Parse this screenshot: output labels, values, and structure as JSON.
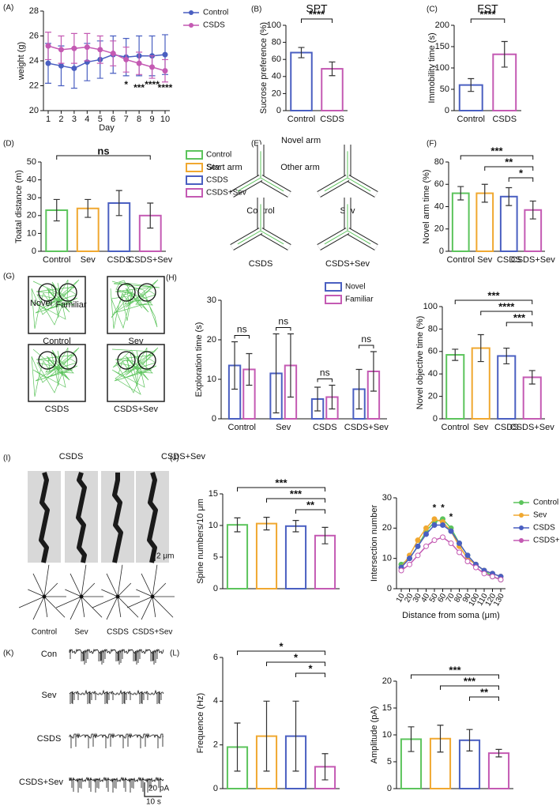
{
  "panel_labels": [
    "(A)",
    "(B)",
    "(C)",
    "(D)",
    "(E)",
    "(F)",
    "(G)",
    "(H)",
    "(I)",
    "(J)",
    "(K)",
    "(L)"
  ],
  "ymaze": {
    "arms": [
      "Novel arm",
      "Start arm",
      "Other arm"
    ],
    "groups": [
      "Control",
      "Sev",
      "CSDS",
      "CSDS+Sev"
    ]
  },
  "openfield": {
    "objects": [
      "Novel",
      "Familiar"
    ],
    "groups": [
      "Control",
      "Sev",
      "CSDS",
      "CSDS+Sev"
    ]
  },
  "dendrites": {
    "headers": [
      "CSDS",
      "CSDS+Sev"
    ],
    "scale": "2 μm",
    "groups": [
      "Control",
      "Sev",
      "CSDS",
      "CSDS+Sev"
    ]
  },
  "traces": {
    "groups": [
      "Con",
      "Sev",
      "CSDS",
      "CSDS+Sev"
    ],
    "scale_y": "20 pA",
    "scale_x": "10 s"
  },
  "chart_data": [
    {
      "type": "line",
      "xlabel": "Day",
      "ylabel": "weight (g)",
      "x": [
        1,
        2,
        3,
        4,
        5,
        6,
        7,
        8,
        9,
        10
      ],
      "xticks": [
        1,
        2,
        3,
        4,
        5,
        6,
        7,
        8,
        9,
        10
      ],
      "xlim": [
        1,
        10
      ],
      "ylim": [
        20,
        28
      ],
      "yticks": [
        20,
        22,
        24,
        26,
        28
      ],
      "legend": "right",
      "series": [
        {
          "name": "Control",
          "color": "#4a5fc1",
          "values": [
            23.8,
            23.6,
            23.4,
            23.9,
            24.1,
            24.5,
            24.3,
            24.4,
            24.4,
            24.5
          ],
          "errors": [
            1.6,
            1.6,
            1.6,
            1.5,
            1.5,
            1.5,
            1.5,
            1.6,
            1.6,
            1.6
          ]
        },
        {
          "name": "CSDS",
          "color": "#c45ab3",
          "values": [
            25.2,
            24.9,
            25.0,
            25.1,
            24.9,
            24.6,
            24.1,
            23.8,
            23.5,
            23.2
          ],
          "errors": [
            1.1,
            1.1,
            1.2,
            1.1,
            1.1,
            1.0,
            1.0,
            0.9,
            0.9,
            0.9
          ]
        }
      ],
      "point_labels": [
        null,
        null,
        null,
        null,
        null,
        null,
        "*",
        "***",
        "****",
        "****"
      ]
    },
    {
      "type": "bar",
      "title": "SPT",
      "ylabel": "Sucrose preference (%)",
      "categories": [
        "Control",
        "CSDS"
      ],
      "values": [
        68,
        49
      ],
      "errors": [
        6,
        8
      ],
      "colors": [
        "#4a5fc1",
        "#c45ab3"
      ],
      "ylim": [
        0,
        100
      ],
      "yticks": [
        0,
        20,
        40,
        60,
        80,
        100
      ],
      "significance": [
        "****"
      ]
    },
    {
      "type": "bar",
      "title": "FST",
      "ylabel": "Immobility time (s)",
      "categories": [
        "Control",
        "CSDS"
      ],
      "values": [
        60,
        132
      ],
      "errors": [
        15,
        30
      ],
      "colors": [
        "#4a5fc1",
        "#c45ab3"
      ],
      "ylim": [
        0,
        200
      ],
      "yticks": [
        0,
        50,
        100,
        150,
        200
      ],
      "significance": [
        "****"
      ]
    },
    {
      "type": "bar",
      "ylabel": "Toatal distance (m)",
      "categories": [
        "Control",
        "Sev",
        "CSDS",
        "CSDS+Sev"
      ],
      "values": [
        23,
        24,
        27,
        20
      ],
      "errors": [
        6,
        5,
        7,
        7
      ],
      "colors": [
        "#5cc45c",
        "#f0a830",
        "#4a5fc1",
        "#c45ab3"
      ],
      "ylim": [
        0,
        50
      ],
      "yticks": [
        0,
        10,
        20,
        30,
        40,
        50
      ],
      "significance": [
        "ns"
      ],
      "legend": "right"
    },
    {
      "type": "bar",
      "ylabel": "Novel arm time (%)",
      "categories": [
        "Control",
        "Sev",
        "CSDS",
        "CSDS+Sev"
      ],
      "values": [
        52,
        52,
        49,
        37
      ],
      "errors": [
        6,
        8,
        8,
        8
      ],
      "colors": [
        "#5cc45c",
        "#f0a830",
        "#4a5fc1",
        "#c45ab3"
      ],
      "ylim": [
        0,
        80
      ],
      "yticks": [
        0,
        20,
        40,
        60,
        80
      ],
      "significance": [
        "***",
        "**",
        "*"
      ]
    },
    {
      "type": "grouped",
      "ylabel": "Exploration time (s)",
      "categories": [
        "Control",
        "Sev",
        "CSDS",
        "CSDS+Sev"
      ],
      "ylim": [
        0,
        30
      ],
      "yticks": [
        0,
        10,
        20,
        30
      ],
      "legend": "upper right",
      "series": [
        {
          "name": "Novel",
          "color": "#4a5fc1",
          "values": [
            13.5,
            11.5,
            5,
            7.5
          ],
          "errors": [
            6,
            10,
            3,
            5
          ]
        },
        {
          "name": "Familiar",
          "color": "#c45ab3",
          "values": [
            12.5,
            13.5,
            5.5,
            12
          ],
          "errors": [
            4,
            8,
            3,
            5
          ]
        }
      ],
      "group_labels": [
        "ns",
        "ns",
        "ns",
        "ns"
      ]
    },
    {
      "type": "bar",
      "ylabel": "Novel objective time (%)",
      "categories": [
        "Control",
        "Sev",
        "CSDS",
        "CSDS+Sev"
      ],
      "values": [
        57,
        63,
        56,
        37
      ],
      "errors": [
        5,
        12,
        7,
        6
      ],
      "colors": [
        "#5cc45c",
        "#f0a830",
        "#4a5fc1",
        "#c45ab3"
      ],
      "ylim": [
        0,
        100
      ],
      "yticks": [
        0,
        20,
        40,
        60,
        80,
        100
      ],
      "significance": [
        "***",
        "****",
        "***"
      ]
    },
    {
      "type": "bar",
      "ylabel": "Spine numbers/10 μm",
      "categories": [
        null,
        null,
        null,
        null
      ],
      "values": [
        10.1,
        10.3,
        9.9,
        8.4
      ],
      "errors": [
        1.1,
        1.0,
        0.9,
        1.3
      ],
      "colors": [
        "#5cc45c",
        "#f0a830",
        "#4a5fc1",
        "#c45ab3"
      ],
      "ylim": [
        0,
        15
      ],
      "yticks": [
        0,
        5,
        10,
        15
      ],
      "significance": [
        "***",
        "***",
        "**"
      ]
    },
    {
      "type": "line",
      "xlabel": "Distance from soma (μm)",
      "ylabel": "Intersection number",
      "x": [
        10,
        20,
        30,
        40,
        50,
        60,
        70,
        80,
        90,
        100,
        110,
        120,
        130
      ],
      "xticks": [
        10,
        20,
        30,
        40,
        50,
        60,
        70,
        80,
        90,
        100,
        110,
        120,
        130
      ],
      "xlim": [
        10,
        130
      ],
      "ylim": [
        0,
        30
      ],
      "yticks": [
        0,
        10,
        20,
        30
      ],
      "legend": "right",
      "series": [
        {
          "name": "Control",
          "color": "#5cc45c",
          "values": [
            8,
            10,
            14,
            19,
            22,
            23,
            20,
            15,
            11,
            8,
            6,
            4,
            3
          ]
        },
        {
          "name": "Sev",
          "color": "#f0a830",
          "values": [
            7,
            11,
            16,
            20,
            23,
            22,
            19,
            14,
            10,
            8,
            6,
            5,
            4
          ]
        },
        {
          "name": "CSDS",
          "color": "#4a5fc1",
          "values": [
            7,
            10,
            14,
            18,
            21,
            21,
            19,
            15,
            11,
            8,
            6,
            5,
            4
          ]
        },
        {
          "name": "CSDS+Sev",
          "color": "#c45ab3",
          "values": [
            6,
            8,
            11,
            14,
            16,
            17,
            15,
            12,
            9,
            7,
            5,
            4,
            3
          ]
        }
      ],
      "point_labels": [
        null,
        null,
        null,
        null,
        "*",
        "*",
        "*",
        null,
        null,
        null,
        null,
        null,
        null
      ]
    },
    {
      "type": "bar",
      "ylabel": "Frequence (Hz)",
      "categories": [
        null,
        null,
        null,
        null
      ],
      "values": [
        1.9,
        2.4,
        2.4,
        1.0
      ],
      "errors": [
        1.1,
        1.6,
        1.6,
        0.6
      ],
      "colors": [
        "#5cc45c",
        "#f0a830",
        "#4a5fc1",
        "#c45ab3"
      ],
      "ylim": [
        0,
        6
      ],
      "yticks": [
        0,
        2,
        4,
        6
      ],
      "significance": [
        "*",
        "*",
        "*"
      ]
    },
    {
      "type": "bar",
      "ylabel": "Amplitude (pA)",
      "categories": [
        null,
        null,
        null,
        null
      ],
      "values": [
        9.2,
        9.3,
        9.0,
        6.6
      ],
      "errors": [
        2.3,
        2.5,
        2.0,
        0.7
      ],
      "colors": [
        "#5cc45c",
        "#f0a830",
        "#4a5fc1",
        "#c45ab3"
      ],
      "ylim": [
        0,
        20
      ],
      "yticks": [
        0,
        5,
        10,
        15,
        20
      ],
      "significance": [
        "***",
        "***",
        "**"
      ]
    }
  ]
}
